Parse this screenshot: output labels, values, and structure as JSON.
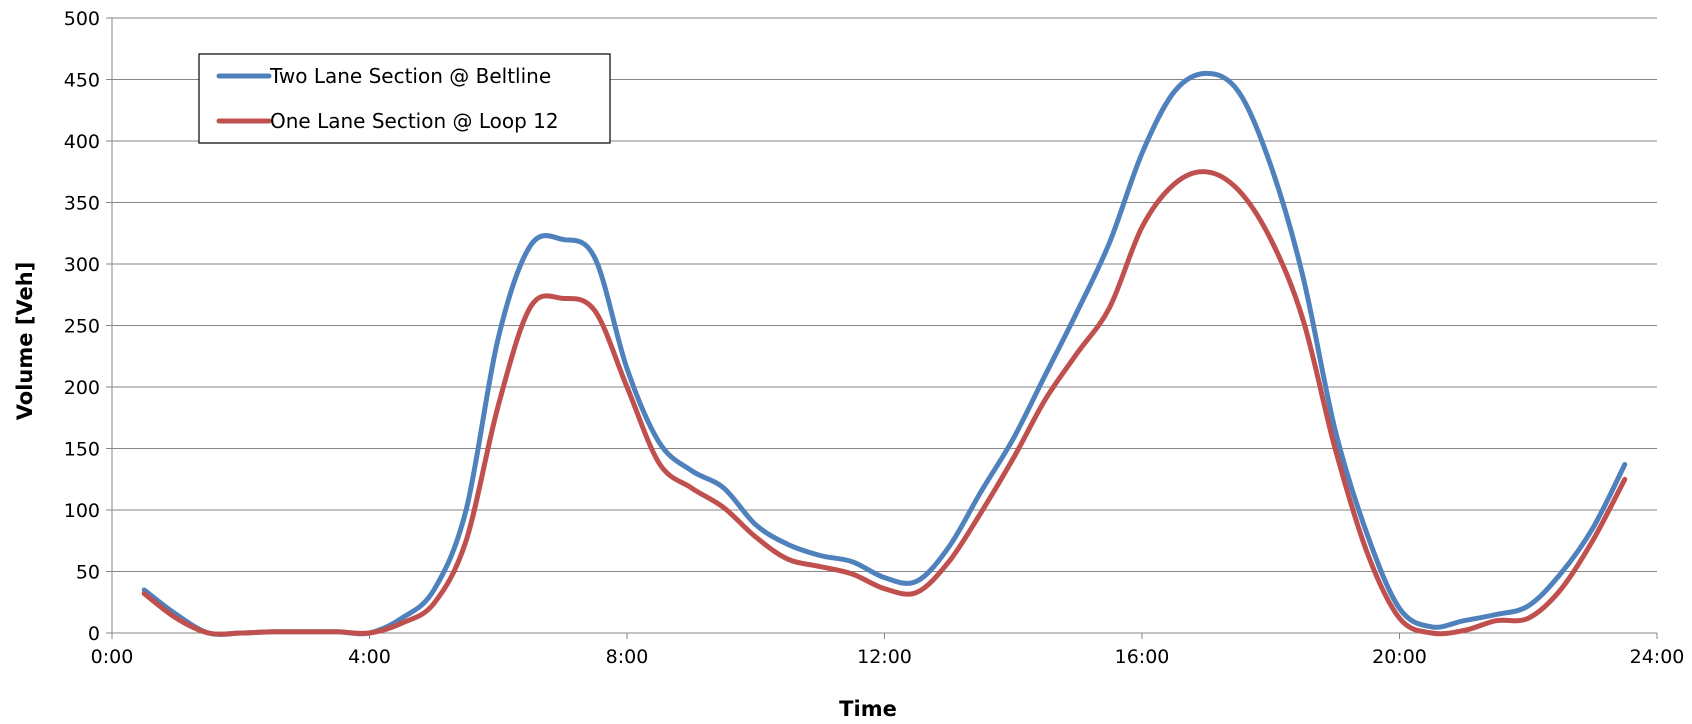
{
  "chart_data": {
    "type": "line",
    "title": "",
    "xlabel": "Time",
    "ylabel": "Volume [Veh]",
    "xlim": [
      "0:00",
      "24:00"
    ],
    "ylim": [
      0,
      500
    ],
    "x_ticks": [
      "0:00",
      "4:00",
      "8:00",
      "12:00",
      "16:00",
      "20:00",
      "24:00"
    ],
    "y_ticks": [
      0,
      50,
      100,
      150,
      200,
      250,
      300,
      350,
      400,
      450,
      500
    ],
    "grid": "horizontal",
    "legend_position": "top-left",
    "x": [
      "0:30",
      "1:00",
      "1:30",
      "2:00",
      "2:30",
      "3:00",
      "3:30",
      "4:00",
      "4:30",
      "5:00",
      "5:30",
      "6:00",
      "6:30",
      "7:00",
      "7:30",
      "8:00",
      "8:30",
      "9:00",
      "9:30",
      "10:00",
      "10:30",
      "11:00",
      "11:30",
      "12:00",
      "12:30",
      "13:00",
      "13:30",
      "14:00",
      "14:30",
      "15:00",
      "15:30",
      "16:00",
      "16:30",
      "17:00",
      "17:30",
      "18:00",
      "18:30",
      "19:00",
      "19:30",
      "20:00",
      "20:30",
      "21:00",
      "21:30",
      "22:00",
      "22:30",
      "23:00",
      "23:30"
    ],
    "series": [
      {
        "name": "Two Lane Section @ Beltline",
        "color": "#4F81BD",
        "values": [
          35,
          15,
          0,
          0,
          1,
          1,
          1,
          0,
          12,
          35,
          100,
          240,
          315,
          320,
          305,
          215,
          155,
          132,
          118,
          88,
          72,
          63,
          58,
          45,
          42,
          70,
          115,
          158,
          210,
          262,
          318,
          390,
          440,
          455,
          440,
          380,
          290,
          165,
          80,
          20,
          5,
          10,
          15,
          22,
          48,
          85,
          137
        ]
      },
      {
        "name": "One Lane Section @ Loop 12",
        "color": "#C0504D",
        "values": [
          32,
          12,
          0,
          0,
          1,
          1,
          1,
          0,
          8,
          24,
          75,
          185,
          265,
          272,
          262,
          200,
          138,
          118,
          102,
          78,
          60,
          54,
          48,
          36,
          33,
          58,
          98,
          142,
          190,
          228,
          265,
          330,
          365,
          375,
          360,
          320,
          255,
          150,
          65,
          12,
          0,
          2,
          10,
          12,
          35,
          75,
          125
        ]
      }
    ]
  }
}
